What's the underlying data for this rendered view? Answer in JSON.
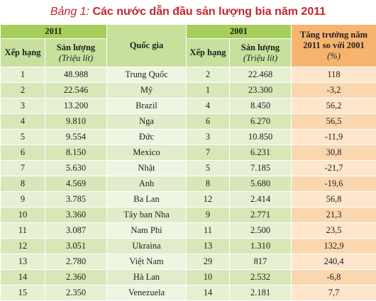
{
  "title": {
    "label": "Bảng 1:",
    "text": "Các nước dẫn đầu sản lượng bia năm 2011"
  },
  "header": {
    "group_2011": "2011",
    "country": "Quốc gia",
    "group_2001": "2001",
    "growth": "Tăng trưởng năm 2011 so với 2001",
    "growth_unit": "(%)",
    "sub": [
      {
        "rank": "Xếp hạng",
        "output": "Sản lượng",
        "unit": "(Triệu lít)"
      },
      {
        "rank": "Xếp hạng",
        "output": "Sản lượng",
        "unit": "(Triệu lít)"
      }
    ]
  },
  "table": {
    "rows": [
      [
        "1",
        "48.988",
        "Trung Quốc",
        "2",
        "22.468",
        "118"
      ],
      [
        "2",
        "22.546",
        "Mỹ",
        "1",
        "23.300",
        "-3,2"
      ],
      [
        "3",
        "13.200",
        "Brazil",
        "4",
        "8.450",
        "56,2"
      ],
      [
        "4",
        "9.810",
        "Nga",
        "6",
        "6.270",
        "56,5"
      ],
      [
        "5",
        "9.554",
        "Đức",
        "3",
        "10.850",
        "-11,9"
      ],
      [
        "6",
        "8.150",
        "Mexico",
        "7",
        "6.231",
        "30,8"
      ],
      [
        "7",
        "5.630",
        "Nhật",
        "5",
        "7.185",
        "-21,7"
      ],
      [
        "8",
        "4.569",
        "Anh",
        "8",
        "5.680",
        "-19,6"
      ],
      [
        "9",
        "3.785",
        "Ba Lan",
        "12",
        "2.414",
        "56,8"
      ],
      [
        "10",
        "3.360",
        "Tây ban Nha",
        "9",
        "2.771",
        "21,3"
      ],
      [
        "11",
        "3.087",
        "Nam Phi",
        "11",
        "2.500",
        "23,5"
      ],
      [
        "12",
        "3.051",
        "Ukraina",
        "13",
        "1.310",
        "132,9"
      ],
      [
        "13",
        "2.780",
        "Việt Nam",
        "29",
        "817",
        "240,4"
      ],
      [
        "14",
        "2.360",
        "Hà Lan",
        "10",
        "2.532",
        "-6,8"
      ],
      [
        "15",
        "2.350",
        "Venezuela",
        "14",
        "2.181",
        "7,7"
      ]
    ]
  }
}
